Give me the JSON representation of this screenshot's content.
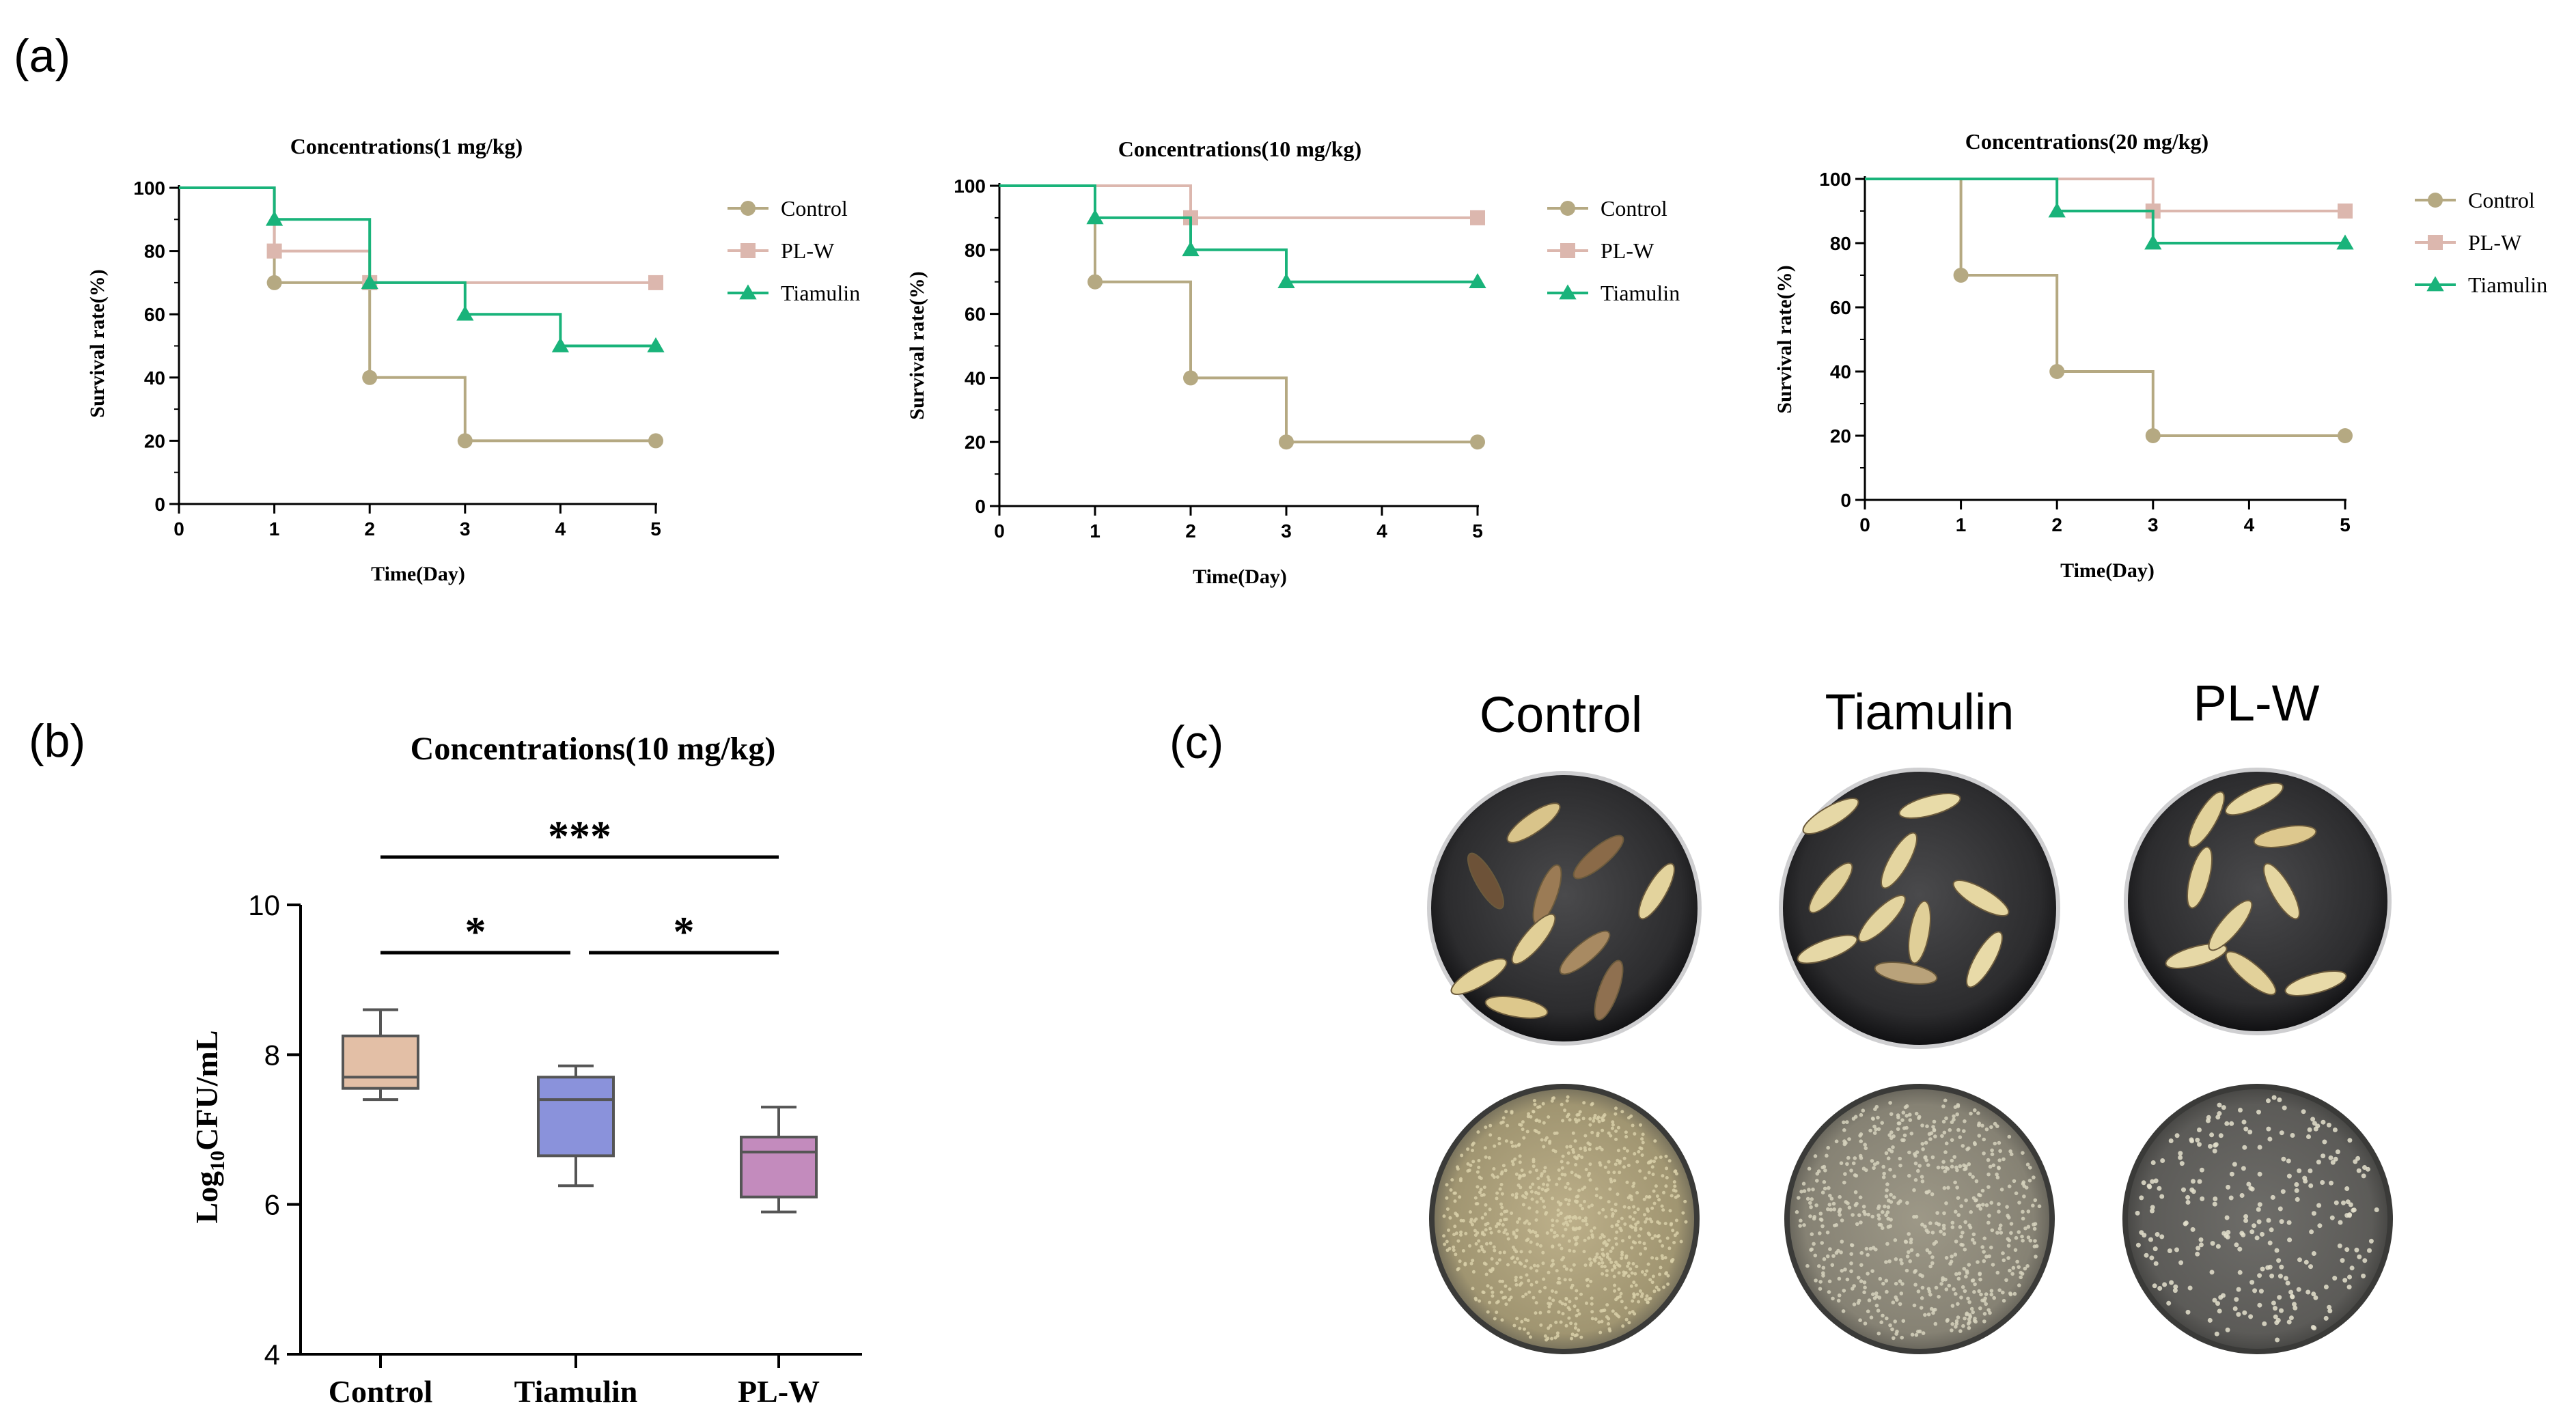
{
  "panel_labels": {
    "a": "(a)",
    "b": "(b)",
    "c": "(c)"
  },
  "colors": {
    "control": "#b5a982",
    "plw": "#dcb7ae",
    "tiamulin": "#19b37a",
    "axis": "#000000",
    "box_control": "#e3bfa6",
    "box_tiamulin": "#8a92db",
    "box_plw": "#c38bbd",
    "box_edge": "#555555"
  },
  "chart_data": [
    {
      "type": "line",
      "step": true,
      "title": "Concentrations(1 mg/kg)",
      "xlabel": "Time(Day)",
      "ylabel": "Survival rate(%)",
      "xlim": [
        0,
        5
      ],
      "ylim": [
        0,
        100
      ],
      "xticks": [
        0,
        1,
        2,
        3,
        4,
        5
      ],
      "yticks": [
        0,
        20,
        40,
        60,
        80,
        100
      ],
      "legend_position": "right",
      "series": [
        {
          "name": "Control",
          "key": "control",
          "marker": "circle",
          "x": [
            0,
            1,
            2,
            3,
            5
          ],
          "values": [
            100,
            70,
            40,
            20,
            20
          ]
        },
        {
          "name": "PL-W",
          "key": "plw",
          "marker": "square",
          "x": [
            0,
            1,
            2,
            5
          ],
          "values": [
            100,
            80,
            70,
            70
          ]
        },
        {
          "name": "Tiamulin",
          "key": "tiamulin",
          "marker": "triangle",
          "x": [
            0,
            1,
            2,
            3,
            4,
            5
          ],
          "values": [
            100,
            90,
            70,
            60,
            50,
            50
          ]
        }
      ]
    },
    {
      "type": "line",
      "step": true,
      "title": "Concentrations(10 mg/kg)",
      "xlabel": "Time(Day)",
      "ylabel": "Survival rate(%)",
      "xlim": [
        0,
        5
      ],
      "ylim": [
        0,
        100
      ],
      "xticks": [
        0,
        1,
        2,
        3,
        4,
        5
      ],
      "yticks": [
        0,
        20,
        40,
        60,
        80,
        100
      ],
      "legend_position": "right",
      "series": [
        {
          "name": "Control",
          "key": "control",
          "marker": "circle",
          "x": [
            0,
            1,
            2,
            3,
            5
          ],
          "values": [
            100,
            70,
            40,
            20,
            20
          ]
        },
        {
          "name": "PL-W",
          "key": "plw",
          "marker": "square",
          "x": [
            0,
            2,
            5
          ],
          "values": [
            100,
            90,
            90
          ]
        },
        {
          "name": "Tiamulin",
          "key": "tiamulin",
          "marker": "triangle",
          "x": [
            0,
            1,
            2,
            3,
            5
          ],
          "values": [
            100,
            90,
            80,
            70,
            70
          ]
        }
      ]
    },
    {
      "type": "line",
      "step": true,
      "title": "Concentrations(20 mg/kg)",
      "xlabel": "Time(Day)",
      "ylabel": "Survival rate(%)",
      "xlim": [
        0,
        5
      ],
      "ylim": [
        0,
        100
      ],
      "xticks": [
        0,
        1,
        2,
        3,
        4,
        5
      ],
      "yticks": [
        0,
        20,
        40,
        60,
        80,
        100
      ],
      "legend_position": "right",
      "series": [
        {
          "name": "Control",
          "key": "control",
          "marker": "circle",
          "x": [
            0,
            1,
            2,
            3,
            5
          ],
          "values": [
            100,
            70,
            40,
            20,
            20
          ]
        },
        {
          "name": "PL-W",
          "key": "plw",
          "marker": "square",
          "x": [
            0,
            3,
            5
          ],
          "values": [
            100,
            90,
            90
          ]
        },
        {
          "name": "Tiamulin",
          "key": "tiamulin",
          "marker": "triangle",
          "x": [
            0,
            2,
            3,
            5
          ],
          "values": [
            100,
            90,
            80,
            80
          ]
        }
      ]
    },
    {
      "type": "box",
      "title": "Concentrations(10 mg/kg)",
      "ylabel_main": "Log",
      "ylabel_sub": "10",
      "ylabel_rest": "CFU/mL",
      "ylim": [
        4,
        10
      ],
      "yticks": [
        4,
        6,
        8,
        10
      ],
      "categories": [
        "Control",
        "Tiamulin",
        "PL-W"
      ],
      "boxes": [
        {
          "name": "Control",
          "key": "box_control",
          "min": 7.4,
          "q1": 7.55,
          "median": 7.7,
          "q3": 8.25,
          "max": 8.6
        },
        {
          "name": "Tiamulin",
          "key": "box_tiamulin",
          "min": 6.25,
          "q1": 6.65,
          "median": 7.4,
          "q3": 7.7,
          "max": 7.85
        },
        {
          "name": "PL-W",
          "key": "box_plw",
          "min": 5.9,
          "q1": 6.1,
          "median": 6.7,
          "q3": 6.9,
          "max": 7.3
        }
      ],
      "significance": [
        {
          "from": 0,
          "to": 2,
          "label": "***"
        },
        {
          "from": 0,
          "to": 1,
          "label": "*"
        },
        {
          "from": 1,
          "to": 2,
          "label": "*"
        }
      ]
    }
  ],
  "photos": {
    "columns": [
      "Control",
      "Tiamulin",
      "PL-W"
    ]
  }
}
